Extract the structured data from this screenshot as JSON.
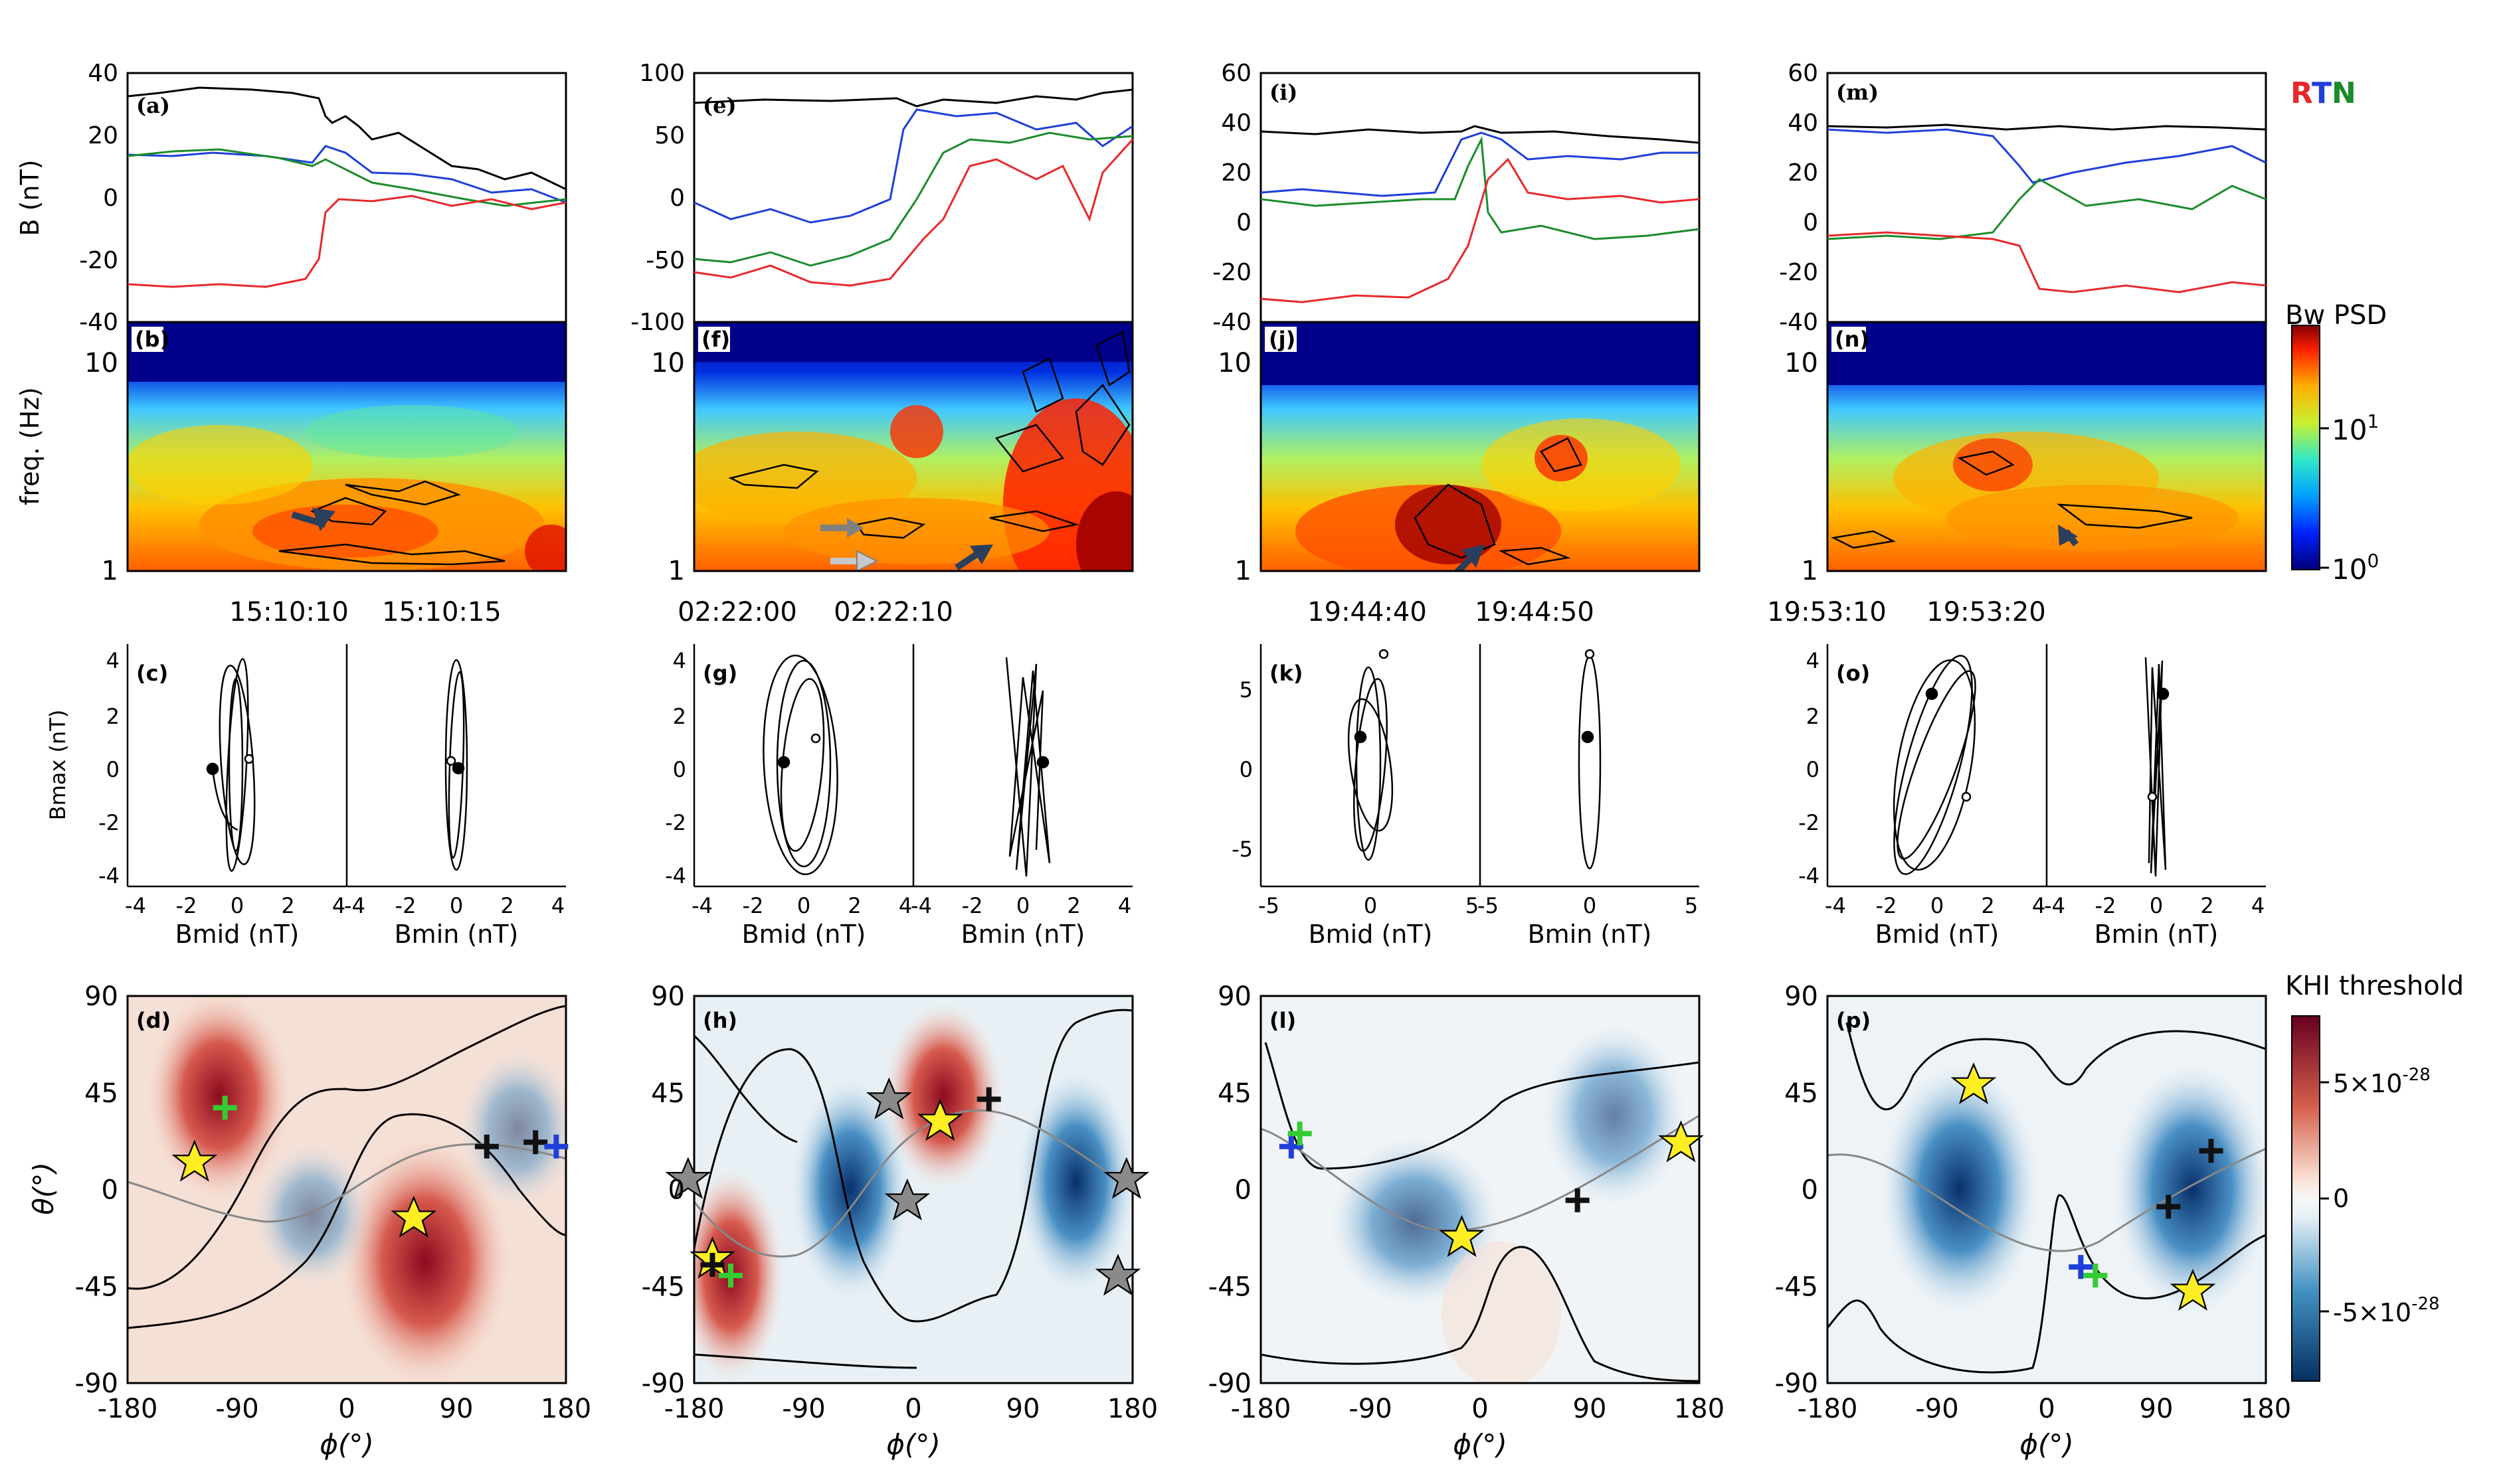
{
  "figure": {
    "rtn_legend": {
      "r": "R",
      "t": "T",
      "n": "N",
      "colors": {
        "r": "#e8282a",
        "t": "#1f3fd9",
        "n": "#1a8c2a"
      }
    },
    "psd_colorbar": {
      "title": "Bw PSD",
      "ticks": [
        "10",
        "10"
      ],
      "exponents": [
        "1",
        "0"
      ]
    },
    "khi_colorbar": {
      "title": "KHI threshold",
      "ticks": [
        "5×10",
        "0",
        "-5×10"
      ],
      "exponents": [
        "-28",
        "-28"
      ]
    }
  },
  "chart_data": [
    {
      "type": "line",
      "panel": "a",
      "ylabel": "B (nT)",
      "ylim": [
        -40,
        40
      ],
      "yticks": [
        "40",
        "20",
        "0",
        "-20",
        "-40"
      ],
      "series": [
        "R",
        "T",
        "N",
        "|B|"
      ]
    },
    {
      "type": "line",
      "panel": "e",
      "ylim": [
        -100,
        100
      ],
      "yticks": [
        "100",
        "50",
        "0",
        "-50",
        "-100"
      ],
      "series": [
        "R",
        "T",
        "N",
        "|B|"
      ]
    },
    {
      "type": "line",
      "panel": "i",
      "ylim": [
        -40,
        60
      ],
      "yticks": [
        "60",
        "40",
        "20",
        "0",
        "-20",
        "-40"
      ],
      "series": [
        "R",
        "T",
        "N",
        "|B|"
      ]
    },
    {
      "type": "line",
      "panel": "m",
      "ylim": [
        -40,
        60
      ],
      "yticks": [
        "60",
        "40",
        "20",
        "0",
        "-20",
        "-40"
      ],
      "series": [
        "R",
        "T",
        "N",
        "|B|"
      ]
    },
    {
      "type": "heatmap",
      "panel": "b",
      "ylabel": "freq. (Hz)",
      "yticks": [
        "10",
        "1"
      ],
      "xticks": [
        "15:10:10",
        "15:10:15"
      ]
    },
    {
      "type": "heatmap",
      "panel": "f",
      "yticks": [
        "10",
        "1"
      ],
      "xticks": [
        "02:22:00",
        "02:22:10"
      ]
    },
    {
      "type": "heatmap",
      "panel": "j",
      "yticks": [
        "10",
        "1"
      ],
      "xticks": [
        "19:44:40",
        "19:44:50"
      ]
    },
    {
      "type": "heatmap",
      "panel": "n",
      "yticks": [
        "10",
        "1"
      ],
      "xticks": [
        "19:53:10",
        "19:53:20"
      ]
    },
    {
      "type": "scatter",
      "panel": "c",
      "ylabel": "Bmax (nT)",
      "xlabels": [
        "Bmid (nT)",
        "Bmin (nT)"
      ],
      "yticks": [
        "4",
        "2",
        "0",
        "-2",
        "-4"
      ],
      "xticks": [
        "-4",
        "-2",
        "0",
        "2",
        "4"
      ]
    },
    {
      "type": "scatter",
      "panel": "g",
      "xlabels": [
        "Bmid (nT)",
        "Bmin (nT)"
      ],
      "yticks": [
        "4",
        "2",
        "0",
        "-2",
        "-4"
      ],
      "xticks": [
        "-4",
        "-2",
        "0",
        "2",
        "4"
      ]
    },
    {
      "type": "scatter",
      "panel": "k",
      "xlabels": [
        "Bmid (nT)",
        "Bmin (nT)"
      ],
      "yticks": [
        "5",
        "0",
        "-5"
      ],
      "xticks": [
        "-5",
        "0",
        "5"
      ]
    },
    {
      "type": "scatter",
      "panel": "o",
      "xlabels": [
        "Bmid (nT)",
        "Bmin (nT)"
      ],
      "yticks": [
        "4",
        "2",
        "0",
        "-2",
        "-4"
      ],
      "xticks": [
        "-4",
        "-2",
        "0",
        "2",
        "4"
      ]
    },
    {
      "type": "heatmap",
      "panel": "d",
      "ylabel": "θ(°)",
      "xlabel": "ϕ(°)",
      "xlim": [
        -180,
        180
      ],
      "ylim": [
        -90,
        90
      ],
      "xticks": [
        "-180",
        "-90",
        "0",
        "90",
        "180"
      ],
      "yticks": [
        "90",
        "45",
        "0",
        "-45",
        "-90"
      ],
      "stars": [
        [
          -125,
          13
        ],
        [
          55,
          -13
        ]
      ],
      "plus_black": [
        [
          115,
          20
        ],
        [
          155,
          22
        ]
      ],
      "plus_blue": [
        [
          172,
          20
        ]
      ],
      "plus_green": [
        [
          -100,
          38
        ]
      ]
    },
    {
      "type": "heatmap",
      "panel": "h",
      "xlabel": "ϕ(°)",
      "xlim": [
        -180,
        180
      ],
      "ylim": [
        -90,
        90
      ],
      "xticks": [
        "-180",
        "-90",
        "0",
        "90",
        "180"
      ],
      "yticks": [
        "90",
        "45",
        "0",
        "-45",
        "-90"
      ],
      "stars": [
        [
          -165,
          -32
        ],
        [
          22,
          32
        ]
      ],
      "stars_gray": [
        [
          -20,
          42
        ],
        [
          -5,
          -5
        ],
        [
          175,
          5
        ],
        [
          -185,
          5
        ],
        [
          168,
          -40
        ]
      ],
      "plus_black": [
        [
          62,
          42
        ],
        [
          -165,
          -35
        ]
      ],
      "plus_green": [
        [
          -150,
          -40
        ]
      ]
    },
    {
      "type": "heatmap",
      "panel": "l",
      "xlabel": "ϕ(°)",
      "xlim": [
        -180,
        180
      ],
      "ylim": [
        -90,
        90
      ],
      "xticks": [
        "-180",
        "-90",
        "0",
        "90",
        "180"
      ],
      "yticks": [
        "90",
        "45",
        "0",
        "-45",
        "-90"
      ],
      "stars": [
        [
          -15,
          -22
        ],
        [
          165,
          22
        ]
      ],
      "plus_black": [
        [
          80,
          -5
        ]
      ],
      "plus_blue": [
        [
          -155,
          20
        ]
      ],
      "plus_green": [
        [
          -148,
          26
        ]
      ]
    },
    {
      "type": "heatmap",
      "panel": "p",
      "xlabel": "ϕ(°)",
      "xlim": [
        -180,
        180
      ],
      "ylim": [
        -90,
        90
      ],
      "xticks": [
        "-180",
        "-90",
        "0",
        "90",
        "180"
      ],
      "yticks": [
        "90",
        "45",
        "0",
        "-45",
        "-90"
      ],
      "stars": [
        [
          -60,
          49
        ],
        [
          120,
          -47
        ]
      ],
      "plus_black": [
        [
          100,
          -8
        ],
        [
          135,
          18
        ]
      ],
      "plus_blue": [
        [
          28,
          -36
        ]
      ],
      "plus_green": [
        [
          40,
          -40
        ]
      ]
    }
  ]
}
